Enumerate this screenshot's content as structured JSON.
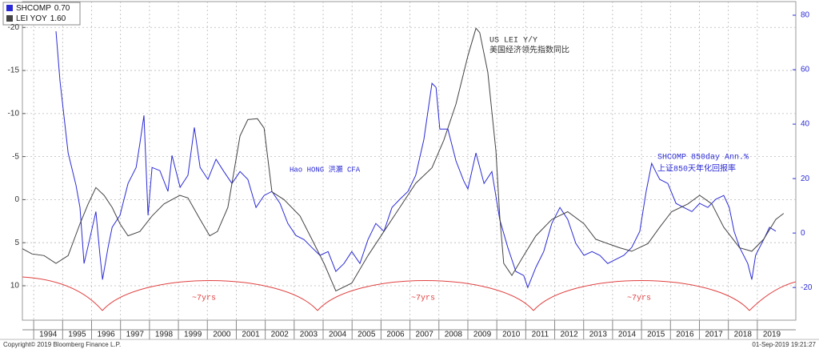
{
  "chart_data": {
    "type": "line",
    "xlim": [
      1993.61,
      2020.33
    ],
    "xticks": [
      1994,
      1995,
      1996,
      1997,
      1998,
      1999,
      2000,
      2001,
      2002,
      2003,
      2004,
      2005,
      2006,
      2007,
      2008,
      2009,
      2010,
      2011,
      2012,
      2013,
      2014,
      2015,
      2016,
      2017,
      2018,
      2019
    ],
    "ylim": [
      -23,
      14
    ],
    "y_inverted": true,
    "yticks": [
      -20,
      -15,
      -10,
      -5,
      0,
      5,
      10
    ],
    "y2lim": [
      -32,
      85
    ],
    "y2ticks": [
      -20,
      0,
      20,
      40,
      60,
      80
    ],
    "grid": true,
    "legend": "top-left",
    "series": [
      {
        "name": "SHCOMP",
        "last_label": "0.70",
        "color": "#2b2bd6",
        "axis": "y2",
        "x": [
          1994.77,
          1994.91,
          1995.19,
          1995.46,
          1995.6,
          1995.74,
          1995.93,
          1996.15,
          1996.29,
          1996.38,
          1996.57,
          1996.71,
          1996.98,
          1997.26,
          1997.54,
          1997.67,
          1997.81,
          1997.95,
          1998.09,
          1998.36,
          1998.64,
          1998.78,
          1999.06,
          1999.33,
          1999.55,
          1999.75,
          2000.02,
          2000.3,
          2000.57,
          2000.85,
          2001.13,
          2001.4,
          2001.68,
          2001.96,
          2002.23,
          2002.51,
          2002.78,
          2003.06,
          2003.34,
          2003.61,
          2003.89,
          2004.17,
          2004.44,
          2004.72,
          2004.99,
          2005.27,
          2005.55,
          2005.82,
          2006.1,
          2006.38,
          2006.65,
          2006.93,
          2007.2,
          2007.48,
          2007.76,
          2007.9,
          2008.03,
          2008.31,
          2008.59,
          2008.86,
          2009.0,
          2009.28,
          2009.56,
          2009.83,
          2010.1,
          2010.38,
          2010.66,
          2010.93,
          2011.07,
          2011.35,
          2011.62,
          2011.9,
          2012.18,
          2012.45,
          2012.73,
          2013.01,
          2013.29,
          2013.56,
          2013.83,
          2014.11,
          2014.39,
          2014.66,
          2014.94,
          2015.16,
          2015.35,
          2015.49,
          2015.63,
          2015.91,
          2016.19,
          2016.46,
          2016.74,
          2017.01,
          2017.29,
          2017.56,
          2017.84,
          2018.03,
          2018.2,
          2018.39,
          2018.67,
          2018.81,
          2018.94,
          2019.22,
          2019.42,
          2019.64
        ],
        "values": [
          74.1,
          55.9,
          29.4,
          17.6,
          9.4,
          -11.2,
          -2.4,
          7.9,
          -8.2,
          -17.1,
          -5.3,
          2.1,
          6.5,
          18.2,
          24.1,
          32.9,
          43.2,
          6.5,
          24.1,
          22.9,
          15.3,
          28.5,
          16.8,
          21.2,
          38.8,
          24.1,
          19.7,
          27.1,
          22.6,
          18.2,
          22.6,
          19.7,
          9.4,
          13.8,
          15.3,
          10.9,
          3.5,
          -0.9,
          -2.4,
          -5.3,
          -8.2,
          -6.8,
          -14.1,
          -11.2,
          -6.8,
          -11.2,
          -2.4,
          3.5,
          0.6,
          9.4,
          12.4,
          15.3,
          21.2,
          34.4,
          55.0,
          53.5,
          38.2,
          38.2,
          26.5,
          19.1,
          16.2,
          29.4,
          18.2,
          22.6,
          5.0,
          -5.3,
          -14.1,
          -15.6,
          -20.0,
          -12.6,
          -6.8,
          3.5,
          9.4,
          5.0,
          -3.8,
          -8.2,
          -6.8,
          -8.2,
          -11.2,
          -9.7,
          -8.2,
          -5.3,
          0.6,
          15.3,
          25.6,
          22.6,
          19.7,
          18.2,
          10.9,
          9.4,
          7.9,
          10.9,
          9.4,
          12.4,
          13.8,
          9.4,
          0.6,
          -5.3,
          -11.2,
          -17.1,
          -8.2,
          -2.4,
          2.1,
          0.7
        ]
      },
      {
        "name": "LEI YOY",
        "last_label": "1.60",
        "color": "#444444",
        "axis": "y",
        "x": [
          1993.61,
          1993.94,
          1994.36,
          1994.77,
          1995.19,
          1995.6,
          1995.88,
          1996.15,
          1996.43,
          1996.71,
          1996.98,
          1997.26,
          1997.67,
          1998.09,
          1998.5,
          1999.05,
          1999.33,
          1999.75,
          2000.08,
          2000.35,
          2000.71,
          2001.13,
          2001.4,
          2001.73,
          2001.96,
          2002.23,
          2002.65,
          2003.2,
          2003.61,
          2004.03,
          2004.44,
          2004.99,
          2005.55,
          2006.1,
          2006.65,
          2007.2,
          2007.76,
          2008.17,
          2008.59,
          2009.0,
          2009.28,
          2009.41,
          2009.69,
          2009.97,
          2010.1,
          2010.24,
          2010.52,
          2010.93,
          2011.35,
          2011.9,
          2012.45,
          2013.01,
          2013.42,
          2013.83,
          2014.25,
          2014.66,
          2015.22,
          2015.63,
          2016.04,
          2016.6,
          2017.01,
          2017.43,
          2017.84,
          2018.39,
          2018.81,
          2019.22,
          2019.64,
          2019.91
        ],
        "values": [
          5.7,
          6.3,
          6.5,
          7.4,
          6.5,
          2.8,
          0.5,
          -1.4,
          -0.5,
          0.9,
          2.8,
          4.2,
          3.7,
          1.9,
          0.5,
          -0.5,
          -0.2,
          2.3,
          4.2,
          3.7,
          0.9,
          -7.4,
          -9.3,
          -9.4,
          -8.3,
          -0.9,
          0,
          1.9,
          4.6,
          7.4,
          10.6,
          9.7,
          6.5,
          3.7,
          0.9,
          -1.9,
          -3.7,
          -6.9,
          -11.1,
          -16.7,
          -19.9,
          -19.4,
          -14.8,
          -5.6,
          1.9,
          7.4,
          8.8,
          6.5,
          4.2,
          2.3,
          1.4,
          2.8,
          4.6,
          5.1,
          5.6,
          6.0,
          5.1,
          3.2,
          1.4,
          0.5,
          -0.5,
          0.5,
          3.2,
          5.6,
          6.0,
          4.6,
          2.3,
          1.6
        ]
      }
    ],
    "annotations": [
      "US LEI Y/Y",
      "美国经济领先指数同比",
      "Hao HONG 洪灝 CFA",
      "SHCOMP 850day Ann.%",
      "上证850天年化回报率",
      "~7yrs",
      "~7yrs",
      "~7yrs"
    ],
    "footer_left": "Copyright© 2019 Bloomberg Finance L.P.",
    "footer_right": "01-Sep-2019 19:21:27"
  }
}
